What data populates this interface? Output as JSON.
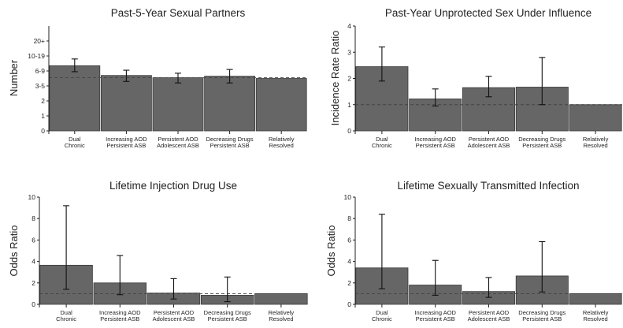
{
  "style": {
    "bar_fill": "#666666",
    "bar_stroke": "#3a3a3a",
    "axis": "#222222",
    "reference_line": "#444444",
    "error_bar": "#111111"
  },
  "chart_data": [
    {
      "type": "bar",
      "title": "Past-5-Year Sexual Partners",
      "ylabel": "Number",
      "ylim": [
        0,
        7
      ],
      "ytick_labels": [
        "0",
        "1",
        "2",
        "3-5",
        "6-9",
        "10-19",
        "20+"
      ],
      "reference_line": 3.55,
      "grid": false,
      "categories": [
        [
          "Dual",
          "Chronic"
        ],
        [
          "Increasing AOD",
          "Persistent ASB"
        ],
        [
          "Persistent AOD",
          "Adolescent ASB"
        ],
        [
          "Decreasing Drugs",
          "Persistent ASB"
        ],
        [
          "Relatively",
          "Resolved"
        ]
      ],
      "values": [
        4.35,
        3.7,
        3.55,
        3.65,
        3.5
      ],
      "ci_low": [
        3.95,
        3.3,
        3.2,
        3.2,
        null
      ],
      "ci_high": [
        4.8,
        4.05,
        3.85,
        4.1,
        null
      ]
    },
    {
      "type": "bar",
      "title": "Past-Year Unprotected Sex Under Influence",
      "ylabel": "Incidence Rate Ratio",
      "ylim": [
        0,
        4
      ],
      "yticks": [
        0,
        1,
        2,
        3,
        4
      ],
      "reference_line": 1,
      "grid": false,
      "categories": [
        [
          "Dual",
          "Chronic"
        ],
        [
          "Increasing AOD",
          "Persistent ASB"
        ],
        [
          "Persistent AOD",
          "Adolescent ASB"
        ],
        [
          "Decreasing Drugs",
          "Persistent ASB"
        ],
        [
          "Relatively",
          "Resolved"
        ]
      ],
      "values": [
        2.45,
        1.22,
        1.65,
        1.67,
        1.0
      ],
      "ci_low": [
        1.9,
        0.95,
        1.3,
        1.0,
        null
      ],
      "ci_high": [
        3.2,
        1.6,
        2.08,
        2.8,
        null
      ]
    },
    {
      "type": "bar",
      "title": "Lifetime Injection Drug Use",
      "ylabel": "Odds Ratio",
      "ylim": [
        0,
        10
      ],
      "yticks": [
        0,
        2,
        4,
        6,
        8,
        10
      ],
      "reference_line": 1,
      "grid": false,
      "categories": [
        [
          "Dual",
          "Chronic"
        ],
        [
          "Increasing AOD",
          "Persistent ASB"
        ],
        [
          "Persistent AOD",
          "Adolescent ASB"
        ],
        [
          "Decreasing Drugs",
          "Persistent ASB"
        ],
        [
          "Relatively",
          "Resolved"
        ]
      ],
      "values": [
        3.65,
        2.0,
        1.05,
        0.85,
        1.0
      ],
      "ci_low": [
        1.4,
        0.9,
        0.5,
        0.25,
        null
      ],
      "ci_high": [
        9.2,
        4.55,
        2.4,
        2.55,
        null
      ]
    },
    {
      "type": "bar",
      "title": "Lifetime Sexually Transmitted Infection",
      "ylabel": "Odds Ratio",
      "ylim": [
        0,
        10
      ],
      "yticks": [
        0,
        2,
        4,
        6,
        8,
        10
      ],
      "reference_line": 1,
      "grid": false,
      "categories": [
        [
          "Dual",
          "Chronic"
        ],
        [
          "Increasing AOD",
          "Persistent ASB"
        ],
        [
          "Persistent AOD",
          "Adolescent ASB"
        ],
        [
          "Decreasing Drugs",
          "Persistent ASB"
        ],
        [
          "Relatively",
          "Resolved"
        ]
      ],
      "values": [
        3.4,
        1.8,
        1.2,
        2.65,
        1.0
      ],
      "ci_low": [
        1.45,
        0.85,
        0.65,
        1.15,
        null
      ],
      "ci_high": [
        8.4,
        4.1,
        2.5,
        5.85,
        null
      ]
    }
  ]
}
